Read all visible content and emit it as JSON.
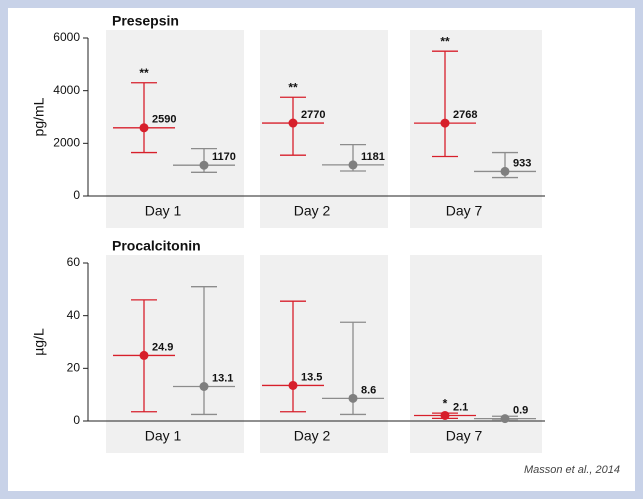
{
  "chart_data": [
    {
      "type": "errorbar",
      "title": "Presepsin",
      "y_label": "pg/mL",
      "categories": [
        "Day 1",
        "Day 2",
        "Day 7"
      ],
      "ylim": [
        0,
        6000
      ],
      "yticks": [
        0,
        2000,
        4000,
        6000
      ],
      "series": [
        {
          "color": "#d71f2b",
          "values": [
            2590,
            2770,
            2768
          ],
          "low": [
            1650,
            1550,
            1500
          ],
          "high": [
            4300,
            3750,
            5500
          ],
          "significance": [
            "**",
            "**",
            "**"
          ]
        },
        {
          "color": "#7f7f7f",
          "values": [
            1170,
            1181,
            933
          ],
          "low": [
            900,
            950,
            700
          ],
          "high": [
            1800,
            1950,
            1650
          ]
        }
      ]
    },
    {
      "type": "errorbar",
      "title": "Procalcitonin",
      "y_label": "µg/L",
      "categories": [
        "Day 1",
        "Day 2",
        "Day 7"
      ],
      "ylim": [
        0,
        60
      ],
      "yticks": [
        0,
        20,
        40,
        60
      ],
      "series": [
        {
          "color": "#d71f2b",
          "values": [
            24.9,
            13.5,
            2.1
          ],
          "low": [
            3.5,
            3.5,
            1
          ],
          "high": [
            46,
            45.5,
            3
          ],
          "significance": [
            null,
            null,
            "*"
          ]
        },
        {
          "color": "#7f7f7f",
          "values": [
            13.1,
            8.6,
            0.9
          ],
          "low": [
            2.5,
            2.5,
            0.3
          ],
          "high": [
            51,
            37.5,
            1.8
          ]
        }
      ]
    }
  ],
  "source": "Masson et al., 2014"
}
